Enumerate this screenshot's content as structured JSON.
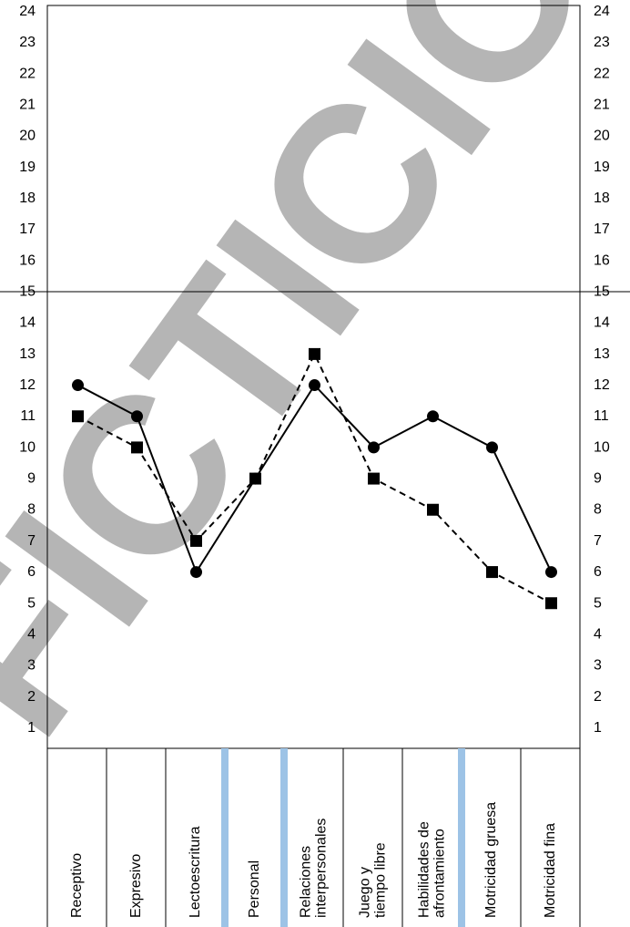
{
  "chart_data": {
    "type": "line",
    "categories": [
      "Receptivo",
      "Expresivo",
      "Lectoescritura",
      "Personal",
      "Relaciones interpersonales",
      "Juego y tiempo libre",
      "Habilidades de afrontamiento",
      "Motricidad gruesa",
      "Motricidad fina"
    ],
    "category_lines": [
      [
        "Receptivo"
      ],
      [
        "Expresivo"
      ],
      [
        "Lectoescritura"
      ],
      [
        "Personal"
      ],
      [
        "Relaciones",
        "interpersonales"
      ],
      [
        "Juego y",
        "tiempo libre"
      ],
      [
        "Habilidades de",
        "afrontamiento"
      ],
      [
        "Motricidad gruesa"
      ],
      [
        "Motricidad fina"
      ]
    ],
    "series": [
      {
        "marker": "circle",
        "line": "solid",
        "color": "#000000",
        "values": [
          12,
          11,
          6,
          9,
          12,
          10,
          11,
          10,
          6
        ]
      },
      {
        "marker": "square",
        "line": "dashed",
        "color": "#000000",
        "values": [
          11,
          10,
          7,
          9,
          13,
          9,
          8,
          6,
          5
        ]
      }
    ],
    "yticks": [
      1,
      2,
      3,
      4,
      5,
      6,
      7,
      8,
      9,
      10,
      11,
      12,
      13,
      14,
      15,
      16,
      17,
      18,
      19,
      20,
      21,
      22,
      23,
      24
    ],
    "ylim": [
      0,
      24
    ],
    "reference_line": 15,
    "watermark": "FICTICIO",
    "section_divider_color": "#9dc3e6"
  }
}
